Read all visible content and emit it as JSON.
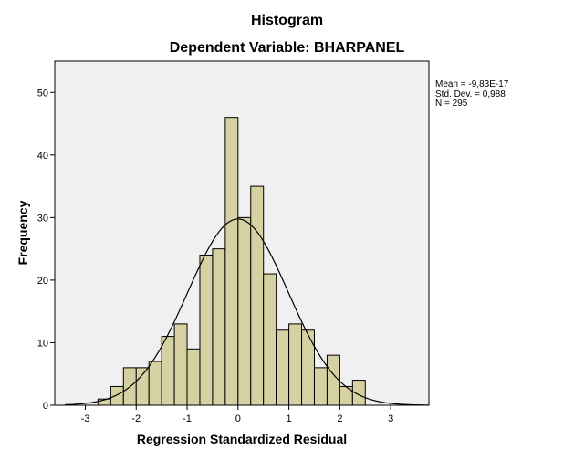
{
  "chart_data": {
    "type": "bar",
    "title": "Histogram",
    "subtitle": "Dependent Variable: BHARPANEL",
    "xlabel": "Regression Standardized Residual",
    "ylabel": "Frequency",
    "xlim": [
      -3.6,
      3.75
    ],
    "ylim": [
      0,
      55
    ],
    "xticks": [
      -3,
      -2,
      -1,
      0,
      1,
      2,
      3
    ],
    "yticks": [
      0,
      10,
      20,
      30,
      40,
      50
    ],
    "bin_start": -2.75,
    "bin_width": 0.25,
    "values": [
      1,
      3,
      6,
      6,
      7,
      11,
      13,
      9,
      24,
      25,
      46,
      30,
      35,
      21,
      12,
      13,
      12,
      6,
      8,
      3,
      4
    ],
    "normal_curve": {
      "mean": 0,
      "std": 0.988,
      "n": 295
    },
    "stats": [
      "Mean = -9,83E-17",
      "Std. Dev. = 0,988",
      "N = 295"
    ],
    "colors": {
      "bar_fill": "#d5d1a3",
      "plot_bg": "#f0f0f0",
      "bar_stroke": "#000000"
    },
    "grid": false,
    "legend": "top-right"
  }
}
